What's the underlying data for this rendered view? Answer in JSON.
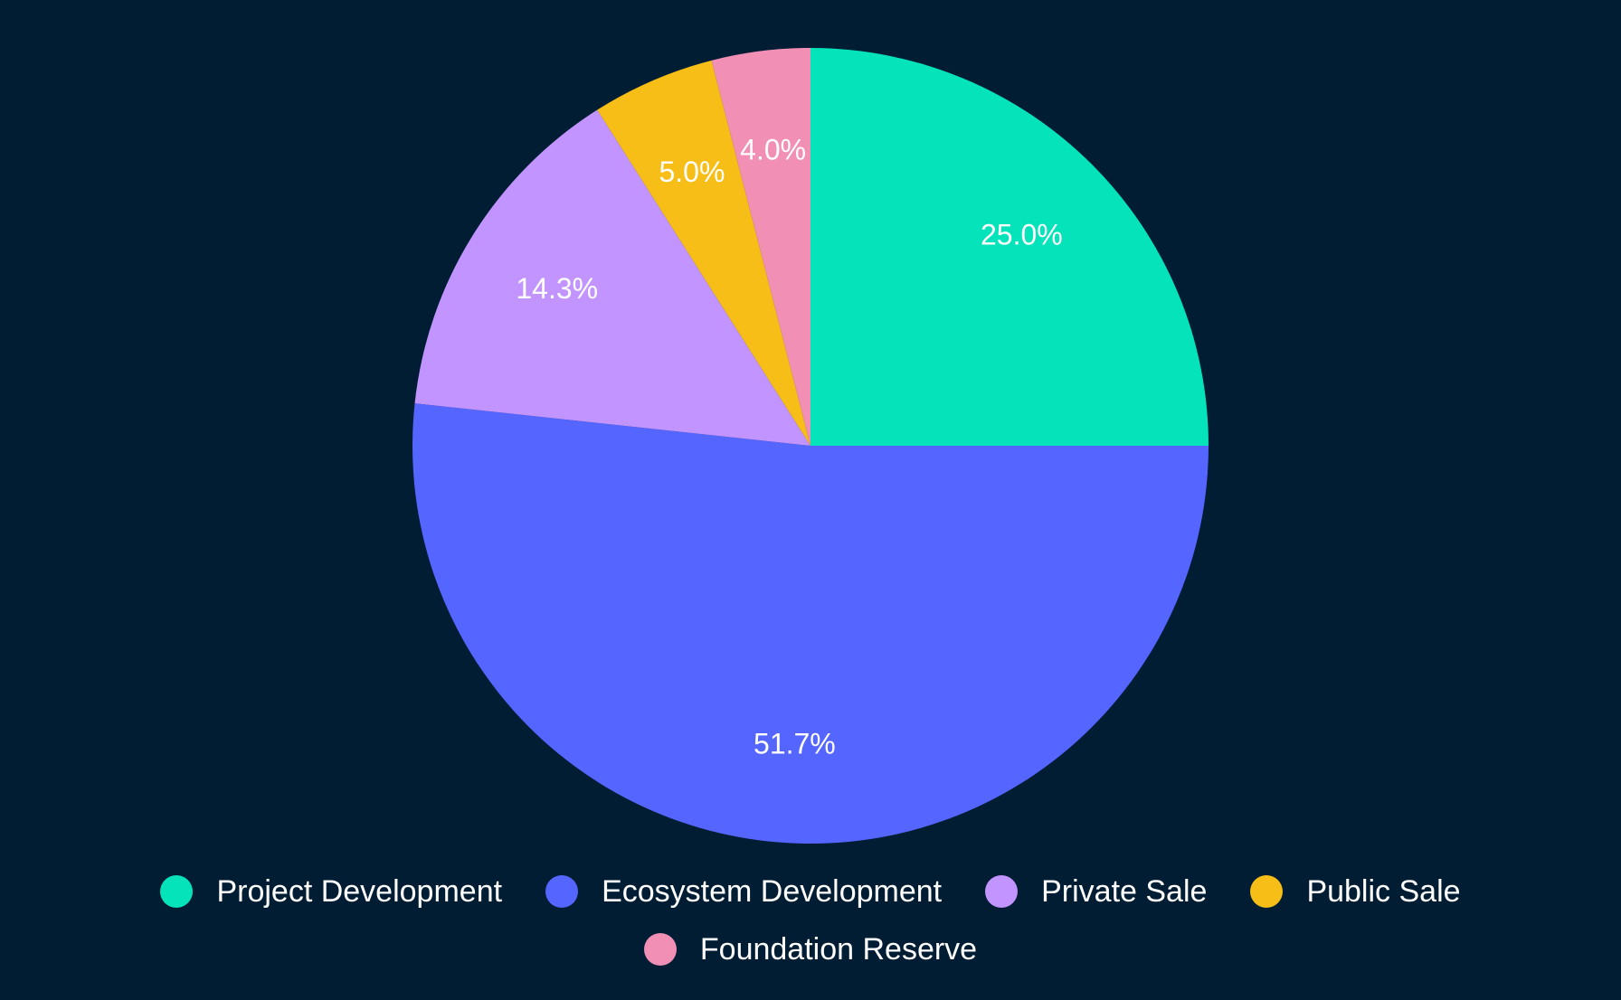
{
  "chart_data": {
    "type": "pie",
    "start": "top",
    "direction": "clockwise",
    "legend_position": "bottom",
    "background": "#001d33",
    "slices": [
      {
        "label": "Project Development",
        "value": 25.0,
        "display": "25.0%",
        "color": "#05e3ba"
      },
      {
        "label": "Ecosystem Development",
        "value": 51.7,
        "display": "51.7%",
        "color": "#5466ff"
      },
      {
        "label": "Private Sale",
        "value": 14.3,
        "display": "14.3%",
        "color": "#c294ff"
      },
      {
        "label": "Public Sale",
        "value": 5.0,
        "display": "5.0%",
        "color": "#f6be16"
      },
      {
        "label": "Foundation Reserve",
        "value": 4.0,
        "display": "4.0%",
        "color": "#f28fb5"
      }
    ]
  }
}
